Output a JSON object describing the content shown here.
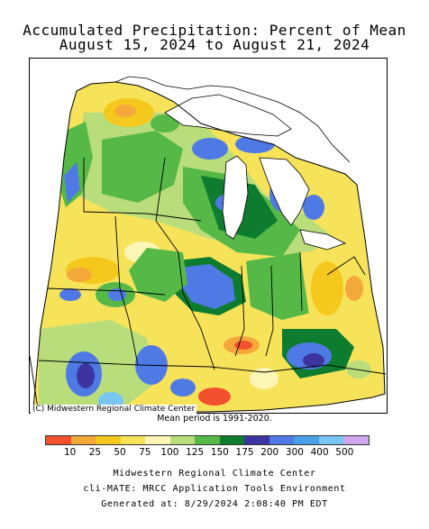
{
  "title": {
    "line1": "Accumulated Precipitation: Percent of Mean",
    "line2": "August 15, 2024 to August 21, 2024"
  },
  "map": {
    "copyright": "(C) Midwestern Regional Climate Center",
    "mean_note": "Mean period is 1991-2020."
  },
  "legend": {
    "colors": [
      "#f2512d",
      "#f5a83a",
      "#f5c81e",
      "#f7e35a",
      "#fbf5b6",
      "#b8dd7a",
      "#55b847",
      "#0d7c2e",
      "#3c35a0",
      "#4f7ae6",
      "#4aa0e8",
      "#78c7f2",
      "#cfa7ee"
    ],
    "labels": [
      "10",
      "25",
      "50",
      "75",
      "100",
      "125",
      "150",
      "175",
      "200",
      "300",
      "400",
      "500"
    ]
  },
  "footer": {
    "line1": "Midwestern Regional Climate Center",
    "line2": "cli-MATE: MRCC Application Tools Environment",
    "line3": "Generated at: 8/29/2024 2:08:40 PM EDT"
  }
}
